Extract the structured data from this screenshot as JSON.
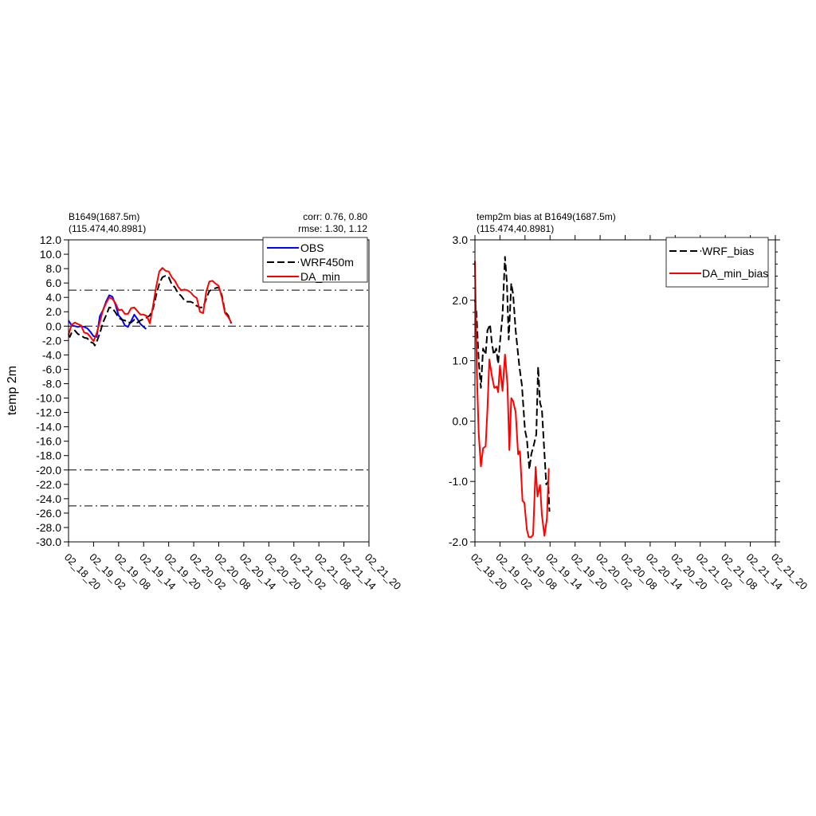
{
  "chart_data": [
    {
      "type": "line",
      "title_left": [
        "B1649(1687.5m)",
        "(115.474,40.8981)"
      ],
      "title_right": [
        "corr:  0.76, 0.80",
        "rmse: 1.30, 1.12"
      ],
      "ylabel": "temp 2m",
      "ylim": [
        -30,
        12
      ],
      "yticks": [
        "12.0",
        "10.0",
        "8.0",
        "6.0",
        "4.0",
        "2.0",
        "0.0",
        "-2.0",
        "-4.0",
        "-6.0",
        "-8.0",
        "-10.0",
        "-12.0",
        "-14.0",
        "-16.0",
        "-18.0",
        "-20.0",
        "-22.0",
        "-24.0",
        "-26.0",
        "-28.0",
        "-30.0"
      ],
      "xticks": [
        "02_18_20",
        "02_19_02",
        "02_19_08",
        "02_19_14",
        "02_19_20",
        "02_20_02",
        "02_20_08",
        "02_20_14",
        "02_20_20",
        "02_21_02",
        "02_21_08",
        "02_21_14",
        "02_21_20"
      ],
      "reference_lines": [
        5,
        0,
        -20,
        -25
      ],
      "legend": [
        {
          "label": "OBS",
          "color": "#0000ff",
          "dash": false
        },
        {
          "label": "WRF450m",
          "color": "#000000",
          "dash": true
        },
        {
          "label": "DA_min",
          "color": "#ff0000",
          "dash": false
        }
      ],
      "series": [
        {
          "name": "OBS",
          "color": "#0000ff",
          "dash": false,
          "points": [
            [
              0,
              0.8
            ],
            [
              0.25,
              0.1
            ],
            [
              0.5,
              0.0
            ],
            [
              0.75,
              -0.1
            ],
            [
              1.0,
              0.0
            ],
            [
              1.25,
              -0.1
            ],
            [
              1.5,
              -0.3
            ],
            [
              1.75,
              -0.8
            ],
            [
              2.0,
              -1.4
            ],
            [
              2.25,
              -1.5
            ],
            [
              2.5,
              1.4
            ],
            [
              2.75,
              2.2
            ],
            [
              3.0,
              3.4
            ],
            [
              3.25,
              4.3
            ],
            [
              3.5,
              4.1
            ],
            [
              3.75,
              3.0
            ],
            [
              4.0,
              1.5
            ],
            [
              4.25,
              1.0
            ],
            [
              4.5,
              0.1
            ],
            [
              4.75,
              -0.1
            ],
            [
              5.0,
              0.7
            ],
            [
              5.25,
              1.6
            ],
            [
              5.5,
              1.0
            ],
            [
              5.75,
              0.3
            ],
            [
              6.0,
              -0.1
            ],
            [
              6.2,
              -0.4
            ]
          ]
        },
        {
          "name": "WRF450m",
          "color": "#000000",
          "dash": true,
          "points": [
            [
              0,
              -1.2
            ],
            [
              0.1,
              -1.5
            ],
            [
              0.25,
              -0.9
            ],
            [
              0.5,
              -0.6
            ],
            [
              0.75,
              -1.1
            ],
            [
              1.0,
              -1.3
            ],
            [
              1.25,
              -1.6
            ],
            [
              1.5,
              -1.7
            ],
            [
              1.75,
              -2.2
            ],
            [
              2.0,
              -2.4
            ],
            [
              2.1,
              -2.7
            ],
            [
              2.25,
              -2.2
            ],
            [
              2.5,
              -1.0
            ],
            [
              2.75,
              0.5
            ],
            [
              3.0,
              1.5
            ],
            [
              3.25,
              2.6
            ],
            [
              3.5,
              2.5
            ],
            [
              3.75,
              1.9
            ],
            [
              4.0,
              1.2
            ],
            [
              4.25,
              0.9
            ],
            [
              4.5,
              0.8
            ],
            [
              4.75,
              0.5
            ],
            [
              5.0,
              0.5
            ],
            [
              5.25,
              0.9
            ],
            [
              5.5,
              0.5
            ],
            [
              5.75,
              0.8
            ],
            [
              6.0,
              1.0
            ],
            [
              6.25,
              1.2
            ],
            [
              6.5,
              1.5
            ],
            [
              6.75,
              2.4
            ],
            [
              7.0,
              4.3
            ],
            [
              7.25,
              5.9
            ],
            [
              7.5,
              6.8
            ],
            [
              7.75,
              7.0
            ],
            [
              8.0,
              6.8
            ],
            [
              8.25,
              5.8
            ],
            [
              8.5,
              5.4
            ],
            [
              8.75,
              4.6
            ],
            [
              9.0,
              4.2
            ],
            [
              9.25,
              3.6
            ],
            [
              9.5,
              3.4
            ],
            [
              9.75,
              3.4
            ],
            [
              10.0,
              3.2
            ],
            [
              10.25,
              2.8
            ],
            [
              10.5,
              2.6
            ],
            [
              10.75,
              2.6
            ],
            [
              11.0,
              3.8
            ],
            [
              11.25,
              4.9
            ],
            [
              11.5,
              5.1
            ],
            [
              11.75,
              5.3
            ],
            [
              12.0,
              5.4
            ],
            [
              12.25,
              4.3
            ],
            [
              12.5,
              2.0
            ],
            [
              12.75,
              1.5
            ],
            [
              13.0,
              0.4
            ]
          ]
        },
        {
          "name": "DA_min",
          "color": "#ff0000",
          "dash": false,
          "points": [
            [
              0,
              -1.2
            ],
            [
              0.25,
              0.2
            ],
            [
              0.5,
              0.5
            ],
            [
              0.75,
              0.3
            ],
            [
              1.0,
              0.1
            ],
            [
              1.25,
              -0.9
            ],
            [
              1.5,
              -1.0
            ],
            [
              1.75,
              -1.5
            ],
            [
              2.0,
              -2.1
            ],
            [
              2.25,
              -1.0
            ],
            [
              2.5,
              0.6
            ],
            [
              2.75,
              2.2
            ],
            [
              3.0,
              3.2
            ],
            [
              3.25,
              4.0
            ],
            [
              3.5,
              3.8
            ],
            [
              3.75,
              3.2
            ],
            [
              4.0,
              2.2
            ],
            [
              4.25,
              2.3
            ],
            [
              4.5,
              1.7
            ],
            [
              4.75,
              1.7
            ],
            [
              5.0,
              2.5
            ],
            [
              5.25,
              2.6
            ],
            [
              5.5,
              2.1
            ],
            [
              5.75,
              1.6
            ],
            [
              6.0,
              1.6
            ],
            [
              6.25,
              1.4
            ],
            [
              6.5,
              0.4
            ],
            [
              6.75,
              2.8
            ],
            [
              7.0,
              5.5
            ],
            [
              7.25,
              7.6
            ],
            [
              7.5,
              8.1
            ],
            [
              7.75,
              7.7
            ],
            [
              8.0,
              7.6
            ],
            [
              8.25,
              6.8
            ],
            [
              8.5,
              6.3
            ],
            [
              8.75,
              5.5
            ],
            [
              9.0,
              5.0
            ],
            [
              9.25,
              5.1
            ],
            [
              9.5,
              5.0
            ],
            [
              9.75,
              4.7
            ],
            [
              10.0,
              4.2
            ],
            [
              10.25,
              3.9
            ],
            [
              10.5,
              2.0
            ],
            [
              10.75,
              1.8
            ],
            [
              11.0,
              4.8
            ],
            [
              11.25,
              6.2
            ],
            [
              11.5,
              6.3
            ],
            [
              11.75,
              5.9
            ],
            [
              12.0,
              5.6
            ],
            [
              12.25,
              4.0
            ],
            [
              12.5,
              1.8
            ],
            [
              12.75,
              1.3
            ],
            [
              13.0,
              0.5
            ]
          ]
        }
      ]
    },
    {
      "type": "line",
      "title_left": [
        "temp2m bias at B1649(1687.5m)",
        "(115.474,40.8981)"
      ],
      "ylim": [
        -2,
        3
      ],
      "yticks": [
        "3.0",
        "2.0",
        "1.0",
        "0.0",
        "-1.0",
        "-2.0"
      ],
      "xticks": [
        "02_18_20",
        "02_19_02",
        "02_19_08",
        "02_19_14",
        "02_19_20",
        "02_20_02",
        "02_20_08",
        "02_20_14",
        "02_20_20",
        "02_21_02",
        "02_21_08",
        "02_21_14",
        "02_21_20"
      ],
      "legend": [
        {
          "label": "WRF_bias",
          "color": "#000000",
          "dash": true
        },
        {
          "label": "DA_min_bias",
          "color": "#ff0000",
          "dash": false
        }
      ],
      "series": [
        {
          "name": "WRF_bias",
          "color": "#000000",
          "dash": true,
          "points": [
            [
              0,
              2.0
            ],
            [
              0.12,
              1.8
            ],
            [
              0.3,
              1.0
            ],
            [
              0.48,
              0.55
            ],
            [
              0.65,
              1.2
            ],
            [
              0.85,
              1.1
            ],
            [
              1.0,
              1.5
            ],
            [
              1.2,
              1.6
            ],
            [
              1.35,
              1.3
            ],
            [
              1.5,
              1.1
            ],
            [
              1.7,
              1.2
            ],
            [
              1.85,
              0.95
            ],
            [
              2.0,
              1.3
            ],
            [
              2.2,
              1.75
            ],
            [
              2.4,
              2.72
            ],
            [
              2.55,
              2.3
            ],
            [
              2.7,
              1.35
            ],
            [
              2.9,
              2.28
            ],
            [
              3.05,
              2.1
            ],
            [
              3.25,
              1.5
            ],
            [
              3.4,
              1.2
            ],
            [
              3.55,
              0.9
            ],
            [
              3.75,
              0.6
            ],
            [
              4.0,
              -0.15
            ],
            [
              4.15,
              -0.3
            ],
            [
              4.35,
              -0.8
            ],
            [
              4.5,
              -0.55
            ],
            [
              4.7,
              -0.4
            ],
            [
              4.9,
              -0.22
            ],
            [
              5.05,
              0.9
            ],
            [
              5.2,
              0.3
            ],
            [
              5.35,
              0.2
            ],
            [
              5.5,
              -0.35
            ],
            [
              5.7,
              -1.05
            ],
            [
              5.85,
              -1.0
            ],
            [
              5.95,
              -1.5
            ]
          ]
        },
        {
          "name": "DA_min_bias",
          "color": "#ff0000",
          "dash": false,
          "points": [
            [
              0,
              2.65
            ],
            [
              0.15,
              0.8
            ],
            [
              0.3,
              -0.2
            ],
            [
              0.48,
              -0.75
            ],
            [
              0.65,
              -0.45
            ],
            [
              0.85,
              -0.42
            ],
            [
              1.0,
              0.2
            ],
            [
              1.15,
              1.02
            ],
            [
              1.35,
              0.75
            ],
            [
              1.55,
              0.55
            ],
            [
              1.75,
              0.57
            ],
            [
              1.85,
              0.48
            ],
            [
              2.0,
              0.92
            ],
            [
              2.2,
              0.5
            ],
            [
              2.4,
              1.1
            ],
            [
              2.6,
              0.6
            ],
            [
              2.75,
              -0.48
            ],
            [
              2.9,
              0.38
            ],
            [
              3.05,
              0.33
            ],
            [
              3.25,
              0.15
            ],
            [
              3.45,
              -0.55
            ],
            [
              3.6,
              -0.5
            ],
            [
              3.8,
              -1.32
            ],
            [
              3.95,
              -1.35
            ],
            [
              4.15,
              -1.8
            ],
            [
              4.3,
              -1.92
            ],
            [
              4.5,
              -1.92
            ],
            [
              4.65,
              -1.88
            ],
            [
              4.85,
              -0.76
            ],
            [
              5.0,
              -1.25
            ],
            [
              5.2,
              -1.06
            ],
            [
              5.35,
              -1.55
            ],
            [
              5.55,
              -1.9
            ],
            [
              5.75,
              -1.62
            ],
            [
              5.9,
              -0.78
            ]
          ]
        }
      ]
    }
  ]
}
